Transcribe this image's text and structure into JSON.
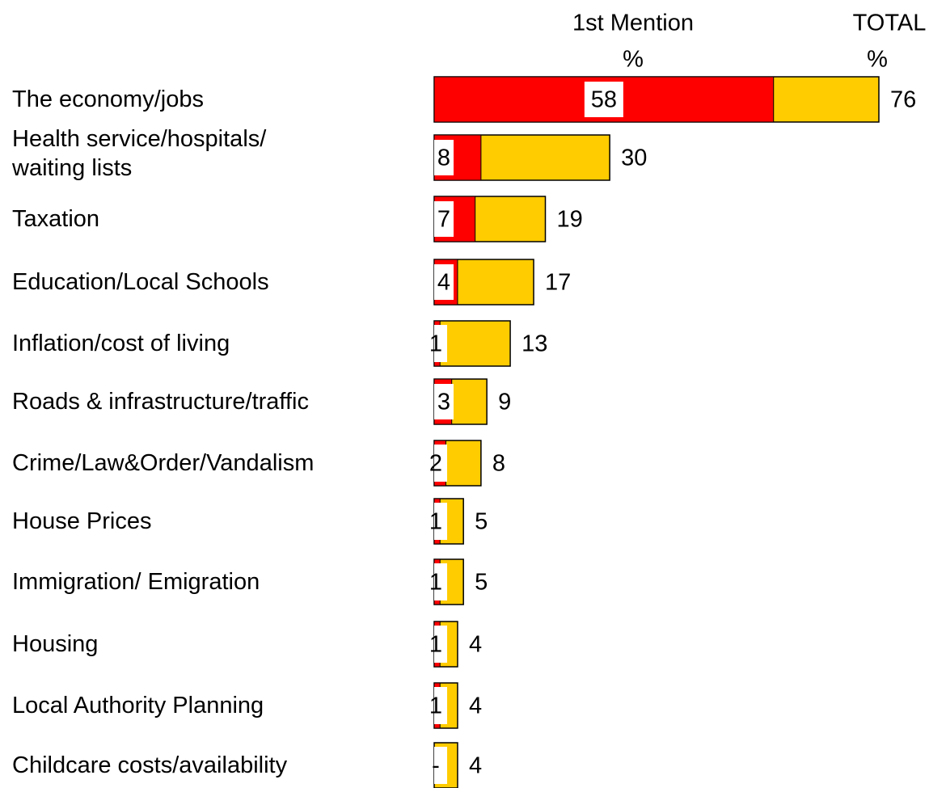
{
  "chart_data": {
    "type": "bar",
    "orientation": "horizontal",
    "stacked": "overlap",
    "unit": "%",
    "categories": [
      "The economy/jobs",
      "Health service/hospitals/\nwaiting lists",
      "Taxation",
      "Education/Local Schools",
      "Inflation/cost of living",
      "Roads & infrastructure/traffic",
      "Crime/Law&Order/Vandalism",
      "House Prices",
      "Immigration/ Emigration",
      "Housing",
      "Local Authority Planning",
      "Childcare costs/availability"
    ],
    "series": [
      {
        "name": "1st Mention",
        "color": "#ff0000",
        "values": [
          58,
          8,
          7,
          4,
          1,
          3,
          2,
          1,
          1,
          1,
          1,
          null
        ],
        "value_labels": [
          "58",
          "8",
          "7",
          "4",
          "1",
          "3",
          "2",
          "1",
          "1",
          "1",
          "1",
          "-"
        ]
      },
      {
        "name": "TOTAL",
        "color": "#ffcc00",
        "values": [
          76,
          30,
          19,
          17,
          13,
          9,
          8,
          5,
          5,
          4,
          4,
          4
        ]
      }
    ],
    "xlim": [
      0,
      76
    ]
  }
}
